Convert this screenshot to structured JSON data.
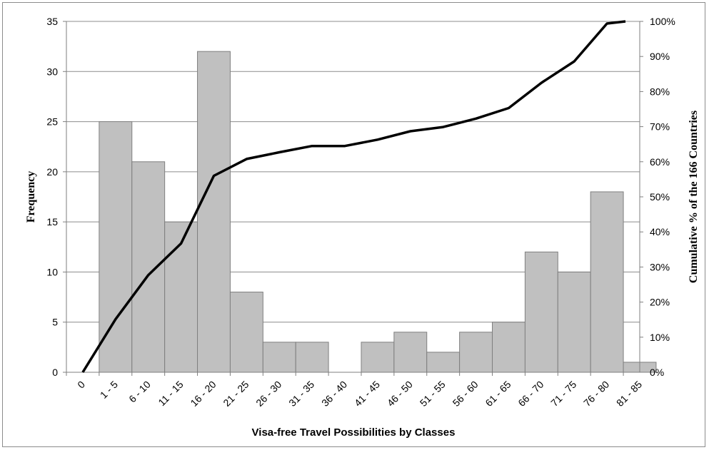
{
  "chart_data": {
    "type": "bar",
    "categories": [
      "0",
      "1 - 5",
      "6 - 10",
      "11 - 15",
      "16 - 20",
      "21 - 25",
      "26 - 30",
      "31 - 35",
      "36 - 40",
      "41 - 45",
      "46 - 50",
      "51 - 55",
      "56 - 60",
      "61 - 65",
      "66 - 70",
      "71 - 75",
      "76 - 80",
      "81 - 85"
    ],
    "series": [
      {
        "type": "bar",
        "values": [
          0,
          25,
          21,
          15,
          32,
          8,
          3,
          3,
          0,
          3,
          4,
          2,
          4,
          5,
          12,
          10,
          18,
          1
        ]
      },
      {
        "type": "line",
        "axis": "right",
        "values": [
          0,
          15.1,
          27.7,
          36.7,
          56.0,
          60.8,
          62.7,
          64.5,
          64.5,
          66.3,
          68.7,
          69.9,
          72.3,
          75.3,
          82.5,
          88.6,
          99.4,
          100
        ]
      }
    ],
    "xlabel": "Visa-free Travel Possibilities by Classes",
    "ylabel": "Frequency",
    "y2label": "Cumulative % of  the 166 Countries",
    "ylim": [
      0,
      35
    ],
    "yticks": [
      "0",
      "5",
      "10",
      "15",
      "20",
      "25",
      "30",
      "35"
    ],
    "y2lim": [
      0,
      100
    ],
    "y2ticks": [
      "0%",
      "10%",
      "20%",
      "30%",
      "40%",
      "50%",
      "60%",
      "70%",
      "80%",
      "90%",
      "100%"
    ],
    "grid": true,
    "colors": {
      "bar_fill": "#c0c0c0",
      "bar_stroke": "#7f7f7f",
      "line": "#000000",
      "grid": "#8c8c8c"
    }
  }
}
